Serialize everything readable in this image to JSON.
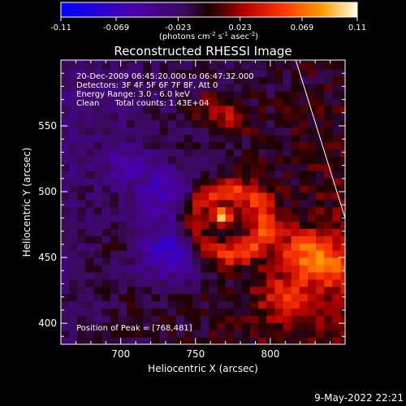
{
  "colorbar": {
    "min": -0.11,
    "max": 0.11,
    "ticks": [
      "-0.11",
      "-0.069",
      "-0.023",
      "0.023",
      "0.069",
      "0.11"
    ],
    "unit_label_parts": [
      "(photons cm",
      "-2",
      " s",
      "-1",
      " asec",
      "-2",
      ")"
    ]
  },
  "chart_data": {
    "type": "heatmap",
    "title": "Reconstructed RHESSI Image",
    "xlabel": "Heliocentric X (arcsec)",
    "ylabel": "Heliocentric Y (arcsec)",
    "xlim": [
      660,
      850
    ],
    "ylim": [
      384,
      600
    ],
    "x_ticks": [
      700,
      750,
      800
    ],
    "y_ticks": [
      400,
      450,
      500,
      550
    ],
    "annotations": [
      "20-Dec-2009 06:45:20.000 to 06:47:32.000",
      "Detectors: 3F 4F 5F 6F 7F 8F, Att 0",
      "Energy Range: 3.0 - 6.0 keV",
      "Clean      Total counts: 1.43E+04"
    ],
    "peak_label": "Position of Peak = [768,481]",
    "peak": [
      768,
      481
    ],
    "limb_line": [
      [
        817,
        600
      ],
      [
        850,
        480
      ]
    ],
    "features": [
      {
        "kind": "peak",
        "x": 768,
        "y": 481,
        "value": 0.11
      },
      {
        "kind": "ring",
        "x": 772,
        "y": 477,
        "radius": 24,
        "value": 0.055
      },
      {
        "kind": "blob",
        "x": 840,
        "y": 445,
        "radius": 18,
        "value": 0.05
      },
      {
        "kind": "blob",
        "x": 820,
        "y": 455,
        "radius": 15,
        "value": 0.045
      },
      {
        "kind": "blob",
        "x": 810,
        "y": 420,
        "radius": 15,
        "value": 0.045
      },
      {
        "kind": "blob",
        "x": 760,
        "y": 565,
        "radius": 12,
        "value": 0.03
      },
      {
        "kind": "blob",
        "x": 775,
        "y": 555,
        "radius": 10,
        "value": 0.04
      },
      {
        "kind": "blob",
        "x": 695,
        "y": 455,
        "radius": 10,
        "value": 0.01
      },
      {
        "kind": "blob",
        "x": 705,
        "y": 410,
        "radius": 10,
        "value": 0.008
      },
      {
        "kind": "trough",
        "x": 735,
        "y": 455,
        "radius": 20,
        "value": -0.06
      },
      {
        "kind": "trough",
        "x": 730,
        "y": 500,
        "radius": 18,
        "value": -0.045
      },
      {
        "kind": "trough",
        "x": 705,
        "y": 520,
        "radius": 14,
        "value": -0.035
      }
    ]
  },
  "footer": {
    "timestamp": "9-May-2022 22:21"
  }
}
